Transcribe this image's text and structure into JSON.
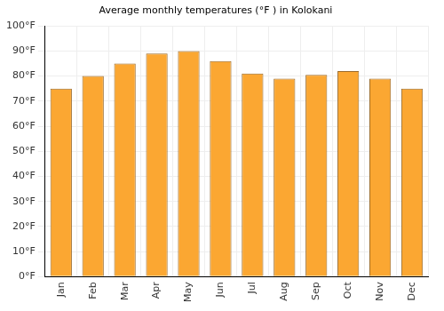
{
  "chart_data": {
    "type": "bar",
    "title": "Average monthly temperatures (°F ) in Kolokani",
    "categories": [
      "Jan",
      "Feb",
      "Mar",
      "Apr",
      "May",
      "Jun",
      "Jul",
      "Aug",
      "Sep",
      "Oct",
      "Nov",
      "Dec"
    ],
    "values": [
      75,
      80,
      85,
      89,
      90,
      86,
      81,
      79,
      80.5,
      82,
      79,
      75
    ],
    "color": "#fba732",
    "ylim": [
      0,
      100
    ],
    "yticks": [
      {
        "value": 0,
        "label": "0°F"
      },
      {
        "value": 10,
        "label": "10°F"
      },
      {
        "value": 20,
        "label": "20°F"
      },
      {
        "value": 30,
        "label": "30°F"
      },
      {
        "value": 40,
        "label": "40°F"
      },
      {
        "value": 50,
        "label": "50°F"
      },
      {
        "value": 60,
        "label": "60°F"
      },
      {
        "value": 70,
        "label": "70°F"
      },
      {
        "value": 80,
        "label": "80°F"
      },
      {
        "value": 90,
        "label": "90°F"
      },
      {
        "value": 100,
        "label": "100°F"
      }
    ],
    "grid": true
  }
}
